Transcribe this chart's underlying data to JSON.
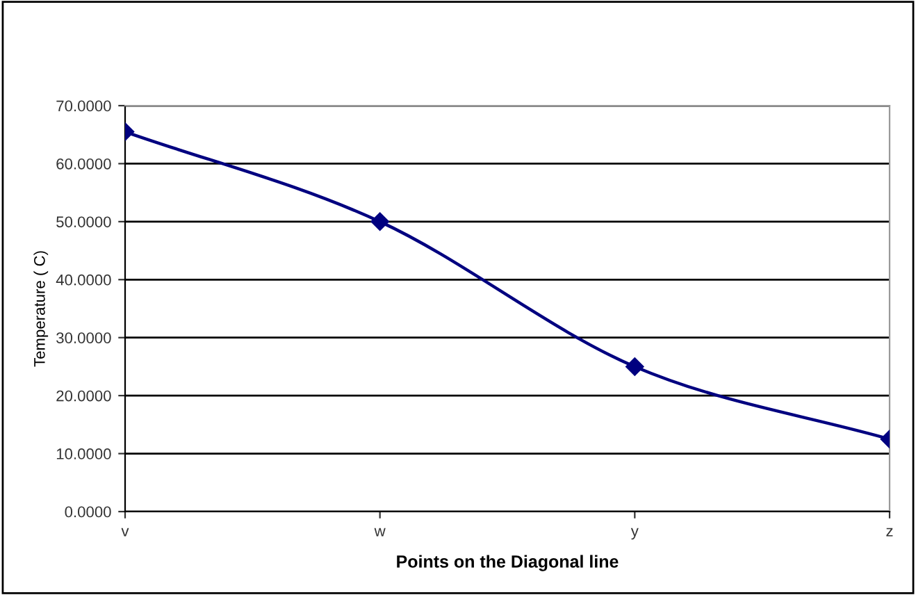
{
  "chart_data": {
    "type": "line",
    "xlabel": "Points on the Diagonal line",
    "ylabel": "Temperature ( C)",
    "categories": [
      "v",
      "w",
      "y",
      "z"
    ],
    "series": [
      {
        "color": "#000080",
        "values": [
          65.5,
          50,
          25,
          12.5
        ]
      }
    ],
    "ylim": [
      0,
      70
    ],
    "yticks": [
      {
        "value": 0,
        "label": "0.0000"
      },
      {
        "value": 10,
        "label": "10.0000"
      },
      {
        "value": 20,
        "label": "20.0000"
      },
      {
        "value": 30,
        "label": "30.0000"
      },
      {
        "value": 40,
        "label": "40.0000"
      },
      {
        "value": 50,
        "label": "50.0000"
      },
      {
        "value": 60,
        "label": "60.0000"
      },
      {
        "value": 70,
        "label": "70.0000"
      }
    ],
    "grid": "y",
    "marker": "diamond",
    "line_style": "solid",
    "legend": false
  }
}
